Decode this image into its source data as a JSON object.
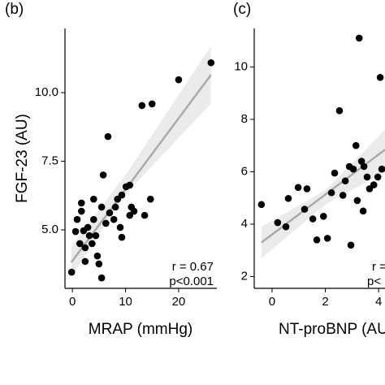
{
  "chart_data": [
    {
      "type": "scatter",
      "panel_label": "(b)",
      "y_label": "FGF-23 (AU)",
      "x_label": "MRAP (mmHg)",
      "annotations": [
        "r = 0.67",
        "p<0.001"
      ],
      "color": "#000000",
      "fit_color": "#aaaaaa",
      "band_color": "#ebebeb",
      "xlim": [
        -1.4,
        27.2
      ],
      "ylim": [
        2.87,
        12.34
      ],
      "xticks": [
        0,
        10,
        20
      ],
      "yticks": [
        {
          "value": 5,
          "label": "5.0"
        },
        {
          "value": 7.5,
          "label": "7.5"
        },
        {
          "value": 10,
          "label": "10.0"
        }
      ],
      "x": [
        -0.15,
        1.7,
        1.7,
        0.9,
        0.6,
        1.4,
        2.4,
        3.2,
        4.0,
        3.7,
        4.7,
        5.5,
        5.0,
        6.3,
        7.0,
        7.8,
        6.7,
        5.8,
        8.5,
        9.3,
        10.1,
        10.8,
        10.8,
        11.6,
        13.1,
        15.0,
        14.7,
        13.6,
        20.0,
        26.1,
        5.5,
        4.0,
        2.9,
        9.3,
        8.1,
        2.4,
        4.4,
        2.1,
        11.1,
        9.0
      ],
      "y": [
        3.46,
        5.68,
        5.98,
        5.38,
        4.94,
        4.5,
        4.35,
        4.79,
        5.38,
        4.5,
        4.05,
        3.25,
        3.76,
        5.24,
        5.62,
        5.38,
        8.4,
        7.0,
        6.12,
        6.27,
        6.57,
        6.63,
        5.53,
        5.68,
        9.53,
        9.59,
        6.12,
        5.53,
        10.47,
        11.09,
        5.83,
        6.12,
        5.09,
        4.73,
        5.83,
        3.85,
        4.79,
        4.97,
        5.83,
        5.09
      ],
      "fit": {
        "x": [
          -0.2,
          26.1
        ],
        "y": [
          3.82,
          10.65
        ]
      },
      "band": {
        "x": [
          -0.2,
          10,
          26.1
        ],
        "lower": [
          3.3,
          6.3,
          9.6
        ],
        "upper": [
          4.4,
          7.0,
          11.7
        ]
      }
    },
    {
      "type": "scatter",
      "panel_label": "(c)",
      "x_label": "NT-proBNP (AU",
      "annotations": [
        "r =",
        "p<"
      ],
      "color": "#000000",
      "fit_color": "#aaaaaa",
      "band_color": "#ebebeb",
      "xlim": [
        -0.67,
        4.24
      ],
      "ylim": [
        1.55,
        11.47
      ],
      "xticks": [
        0,
        2,
        4
      ],
      "yticks": [
        2,
        4,
        6,
        8,
        10
      ],
      "x": [
        -0.4,
        0.21,
        0.52,
        0.61,
        0.98,
        1.22,
        1.31,
        1.53,
        1.68,
        1.93,
        2.08,
        2.23,
        2.35,
        2.53,
        2.66,
        2.75,
        2.9,
        2.96,
        3.05,
        3.15,
        3.2,
        3.27,
        3.36,
        3.42,
        3.57,
        3.66,
        3.82,
        3.97,
        4.06,
        4.12,
        3.45
      ],
      "y": [
        4.75,
        4.06,
        3.9,
        4.98,
        5.4,
        4.57,
        5.35,
        4.2,
        3.4,
        4.3,
        3.46,
        5.2,
        5.95,
        8.33,
        5.1,
        5.65,
        6.2,
        3.2,
        6.1,
        7.0,
        4.9,
        11.1,
        6.4,
        4.5,
        5.8,
        5.35,
        5.5,
        5.8,
        9.6,
        6.1,
        6.2
      ],
      "fit": {
        "x": [
          -0.4,
          4.24
        ],
        "y": [
          3.3,
          6.84
        ]
      },
      "band": {
        "x": [
          -0.4,
          2,
          4.24
        ],
        "lower": [
          2.7,
          4.75,
          6.0
        ],
        "upper": [
          3.9,
          5.3,
          7.6
        ]
      }
    }
  ]
}
